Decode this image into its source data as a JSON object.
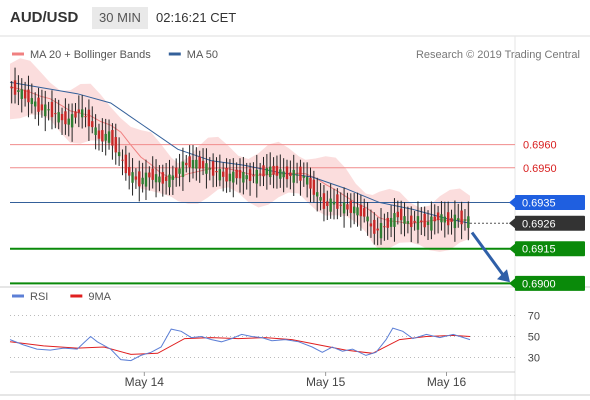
{
  "header": {
    "pair": "AUD/USD",
    "timeframe": "30 MIN",
    "time": "02:16:21 CET"
  },
  "colors": {
    "bollinger": "#f08080",
    "ma50": "#34609a",
    "rsi": "#5c7fd6",
    "nine_ma": "#e01f1f",
    "support": "#0a8a0a",
    "current": "#333333",
    "pivot": "#1f5fe0"
  },
  "chart_data": [
    {
      "type": "line",
      "title": "",
      "legend": [
        {
          "name": "MA 20 + Bollinger Bands",
          "color": "#f08080"
        },
        {
          "name": "MA 50",
          "color": "#34609a"
        }
      ],
      "watermark": "Research © 2019 Trading Central",
      "ylim": [
        0.6898,
        0.6994
      ],
      "x_labels": [
        "May 14",
        "May 15",
        "May 16"
      ],
      "levels": [
        {
          "label": "0.6960",
          "value": 0.696,
          "style": "resistance"
        },
        {
          "label": "0.6950",
          "value": 0.695,
          "style": "resistance"
        },
        {
          "label": "0.6935",
          "value": 0.6935,
          "style": "pivot"
        },
        {
          "label": "0.6926",
          "value": 0.6926,
          "style": "current"
        },
        {
          "label": "0.6915",
          "value": 0.6915,
          "style": "support"
        },
        {
          "label": "0.6900",
          "value": 0.69,
          "style": "support"
        }
      ],
      "price_path": [
        [
          0,
          0.6985
        ],
        [
          3,
          0.6983
        ],
        [
          6,
          0.698
        ],
        [
          9,
          0.6976
        ],
        [
          12,
          0.6975
        ],
        [
          15,
          0.6972
        ],
        [
          18,
          0.697
        ],
        [
          21,
          0.6975
        ],
        [
          24,
          0.697
        ],
        [
          27,
          0.6963
        ],
        [
          30,
          0.6964
        ],
        [
          33,
          0.6955
        ],
        [
          36,
          0.6947
        ],
        [
          39,
          0.6944
        ],
        [
          42,
          0.6947
        ],
        [
          45,
          0.6945
        ],
        [
          48,
          0.6945
        ],
        [
          50,
          0.6948
        ],
        [
          53,
          0.6952
        ],
        [
          56,
          0.6952
        ],
        [
          59,
          0.695
        ],
        [
          62,
          0.6948
        ],
        [
          65,
          0.6946
        ],
        [
          68,
          0.6947
        ],
        [
          71,
          0.6946
        ],
        [
          74,
          0.6947
        ],
        [
          77,
          0.6949
        ],
        [
          80,
          0.6948
        ],
        [
          83,
          0.6947
        ],
        [
          86,
          0.6947
        ],
        [
          88,
          0.6946
        ],
        [
          91,
          0.694
        ],
        [
          94,
          0.6934
        ],
        [
          97,
          0.6935
        ],
        [
          100,
          0.6933
        ],
        [
          103,
          0.6932
        ],
        [
          106,
          0.693
        ],
        [
          108,
          0.6924
        ],
        [
          110,
          0.6923
        ],
        [
          113,
          0.6926
        ],
        [
          116,
          0.693
        ],
        [
          119,
          0.6926
        ],
        [
          122,
          0.6927
        ],
        [
          125,
          0.6926
        ],
        [
          128,
          0.6929
        ],
        [
          131,
          0.6927
        ],
        [
          134,
          0.6928
        ],
        [
          137,
          0.6927
        ]
      ],
      "ma50_path": [
        [
          0,
          0.6987
        ],
        [
          20,
          0.6982
        ],
        [
          30,
          0.6978
        ],
        [
          40,
          0.6968
        ],
        [
          50,
          0.6958
        ],
        [
          60,
          0.6953
        ],
        [
          70,
          0.6951
        ],
        [
          80,
          0.6948
        ],
        [
          90,
          0.6946
        ],
        [
          100,
          0.6941
        ],
        [
          110,
          0.6935
        ],
        [
          120,
          0.6932
        ],
        [
          130,
          0.6928
        ],
        [
          137,
          0.6926
        ]
      ]
    },
    {
      "type": "line",
      "title": "",
      "legend": [
        {
          "name": "RSI",
          "color": "#5c7fd6"
        },
        {
          "name": "9MA",
          "color": "#e01f1f"
        }
      ],
      "ylim": [
        20,
        80
      ],
      "y_ticks": [
        70,
        50,
        30
      ],
      "rsi": [
        [
          0,
          47
        ],
        [
          4,
          42
        ],
        [
          8,
          38
        ],
        [
          12,
          37
        ],
        [
          16,
          39
        ],
        [
          20,
          38
        ],
        [
          22,
          44
        ],
        [
          24,
          50
        ],
        [
          26,
          45
        ],
        [
          30,
          38
        ],
        [
          33,
          28
        ],
        [
          36,
          27
        ],
        [
          39,
          32
        ],
        [
          42,
          35
        ],
        [
          45,
          40
        ],
        [
          48,
          57
        ],
        [
          51,
          55
        ],
        [
          54,
          49
        ],
        [
          57,
          50
        ],
        [
          60,
          47
        ],
        [
          63,
          45
        ],
        [
          66,
          48
        ],
        [
          69,
          52
        ],
        [
          72,
          50
        ],
        [
          75,
          49
        ],
        [
          78,
          46
        ],
        [
          82,
          47
        ],
        [
          86,
          45
        ],
        [
          90,
          40
        ],
        [
          93,
          35
        ],
        [
          96,
          40
        ],
        [
          99,
          36
        ],
        [
          102,
          38
        ],
        [
          106,
          32
        ],
        [
          109,
          35
        ],
        [
          112,
          47
        ],
        [
          114,
          58
        ],
        [
          117,
          55
        ],
        [
          120,
          48
        ],
        [
          124,
          52
        ],
        [
          128,
          49
        ],
        [
          132,
          52
        ],
        [
          137,
          47
        ]
      ],
      "nine_ma": [
        [
          0,
          45
        ],
        [
          10,
          41
        ],
        [
          20,
          39
        ],
        [
          28,
          40
        ],
        [
          36,
          33
        ],
        [
          44,
          34
        ],
        [
          52,
          48
        ],
        [
          60,
          49
        ],
        [
          68,
          48
        ],
        [
          76,
          49
        ],
        [
          84,
          47
        ],
        [
          92,
          42
        ],
        [
          100,
          37
        ],
        [
          108,
          34
        ],
        [
          116,
          47
        ],
        [
          124,
          50
        ],
        [
          132,
          51
        ],
        [
          137,
          50
        ]
      ]
    }
  ]
}
